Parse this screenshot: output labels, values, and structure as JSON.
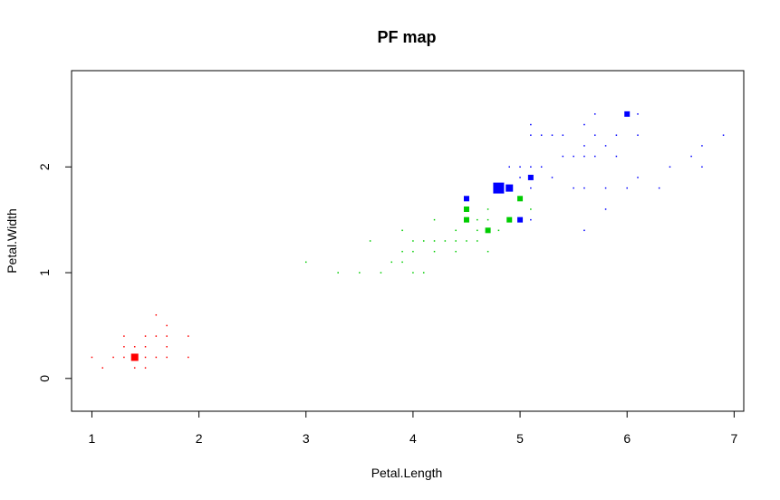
{
  "chart_data": {
    "type": "scatter",
    "title": "PF map",
    "xlabel": "Petal.Length",
    "ylabel": "Petal.Width",
    "xlim": [
      0.81,
      7.09
    ],
    "ylim": [
      -0.31,
      2.91
    ],
    "xticks": [
      1,
      2,
      3,
      4,
      5,
      6,
      7
    ],
    "yticks": [
      0,
      1,
      2
    ],
    "grid": false,
    "legend": "none",
    "colors": {
      "setosa": "#ff0000",
      "versicolor": "#00cc00",
      "virginica": "#0000ff"
    },
    "series": [
      {
        "color": "#ff0000",
        "points": [
          [
            1.0,
            0.2,
            1
          ],
          [
            1.1,
            0.1,
            1
          ],
          [
            1.2,
            0.2,
            1
          ],
          [
            1.3,
            0.2,
            1
          ],
          [
            1.3,
            0.3,
            1
          ],
          [
            1.3,
            0.4,
            1
          ],
          [
            1.4,
            0.2,
            8
          ],
          [
            1.4,
            0.1,
            1
          ],
          [
            1.4,
            0.3,
            1
          ],
          [
            1.5,
            0.1,
            1
          ],
          [
            1.5,
            0.2,
            1
          ],
          [
            1.5,
            0.3,
            1
          ],
          [
            1.5,
            0.4,
            1
          ],
          [
            1.6,
            0.2,
            1
          ],
          [
            1.6,
            0.4,
            1
          ],
          [
            1.6,
            0.6,
            1
          ],
          [
            1.7,
            0.2,
            1
          ],
          [
            1.7,
            0.3,
            1
          ],
          [
            1.7,
            0.4,
            1
          ],
          [
            1.7,
            0.5,
            1
          ],
          [
            1.9,
            0.2,
            1
          ],
          [
            1.9,
            0.4,
            1
          ]
        ]
      },
      {
        "color": "#00cc00",
        "points": [
          [
            3.0,
            1.1,
            1
          ],
          [
            3.3,
            1.0,
            1
          ],
          [
            3.5,
            1.0,
            1
          ],
          [
            3.6,
            1.3,
            1
          ],
          [
            3.7,
            1.0,
            1
          ],
          [
            3.8,
            1.1,
            1
          ],
          [
            3.9,
            1.1,
            1
          ],
          [
            3.9,
            1.2,
            1
          ],
          [
            3.9,
            1.4,
            1
          ],
          [
            4.0,
            1.0,
            1
          ],
          [
            4.0,
            1.2,
            1
          ],
          [
            4.0,
            1.3,
            1
          ],
          [
            4.1,
            1.0,
            1
          ],
          [
            4.1,
            1.3,
            1
          ],
          [
            4.2,
            1.2,
            1
          ],
          [
            4.2,
            1.3,
            1
          ],
          [
            4.2,
            1.5,
            1
          ],
          [
            4.3,
            1.3,
            1
          ],
          [
            4.4,
            1.2,
            1
          ],
          [
            4.4,
            1.3,
            1
          ],
          [
            4.4,
            1.4,
            1
          ],
          [
            4.5,
            1.5,
            6
          ],
          [
            4.5,
            1.6,
            6
          ],
          [
            4.5,
            1.3,
            1
          ],
          [
            4.6,
            1.3,
            1
          ],
          [
            4.6,
            1.4,
            1
          ],
          [
            4.6,
            1.5,
            1
          ],
          [
            4.7,
            1.4,
            6
          ],
          [
            4.7,
            1.2,
            1
          ],
          [
            4.7,
            1.5,
            1
          ],
          [
            4.7,
            1.6,
            1
          ],
          [
            4.8,
            1.4,
            1
          ],
          [
            4.8,
            1.8,
            1
          ],
          [
            4.9,
            1.5,
            6
          ],
          [
            5.0,
            1.7,
            6
          ],
          [
            5.1,
            1.6,
            1
          ]
        ]
      },
      {
        "color": "#0000ff",
        "points": [
          [
            4.5,
            1.7,
            6
          ],
          [
            4.8,
            1.8,
            12
          ],
          [
            4.9,
            1.8,
            8
          ],
          [
            5.0,
            1.5,
            6
          ],
          [
            5.1,
            1.9,
            6
          ],
          [
            6.0,
            2.5,
            6
          ],
          [
            4.9,
            2.0,
            1
          ],
          [
            5.0,
            1.9,
            1
          ],
          [
            5.0,
            2.0,
            1
          ],
          [
            5.1,
            1.5,
            1
          ],
          [
            5.1,
            1.8,
            1
          ],
          [
            5.1,
            2.0,
            1
          ],
          [
            5.1,
            2.3,
            1
          ],
          [
            5.1,
            2.4,
            1
          ],
          [
            5.2,
            2.0,
            1
          ],
          [
            5.2,
            2.3,
            1
          ],
          [
            5.3,
            1.9,
            1
          ],
          [
            5.3,
            2.3,
            1
          ],
          [
            5.4,
            2.1,
            1
          ],
          [
            5.4,
            2.3,
            1
          ],
          [
            5.5,
            1.8,
            1
          ],
          [
            5.5,
            2.1,
            1
          ],
          [
            5.6,
            1.4,
            1
          ],
          [
            5.6,
            1.8,
            1
          ],
          [
            5.6,
            2.1,
            1
          ],
          [
            5.6,
            2.2,
            1
          ],
          [
            5.6,
            2.4,
            1
          ],
          [
            5.7,
            2.1,
            1
          ],
          [
            5.7,
            2.3,
            1
          ],
          [
            5.7,
            2.5,
            1
          ],
          [
            5.8,
            1.6,
            1
          ],
          [
            5.8,
            1.8,
            1
          ],
          [
            5.8,
            2.2,
            1
          ],
          [
            5.9,
            2.1,
            1
          ],
          [
            5.9,
            2.3,
            1
          ],
          [
            6.0,
            1.8,
            1
          ],
          [
            6.1,
            1.9,
            1
          ],
          [
            6.1,
            2.3,
            1
          ],
          [
            6.1,
            2.5,
            1
          ],
          [
            6.3,
            1.8,
            1
          ],
          [
            6.4,
            2.0,
            1
          ],
          [
            6.6,
            2.1,
            1
          ],
          [
            6.7,
            2.0,
            1
          ],
          [
            6.7,
            2.2,
            1
          ],
          [
            6.9,
            2.3,
            1
          ]
        ]
      }
    ]
  }
}
